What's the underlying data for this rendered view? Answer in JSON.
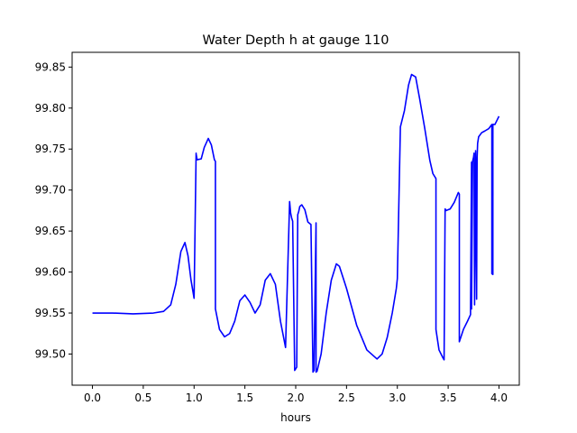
{
  "chart_data": {
    "type": "line",
    "title": "Water Depth h at gauge 110",
    "xlabel": "hours",
    "ylabel": "",
    "xlim": [
      -0.2,
      4.2
    ],
    "ylim": [
      99.462,
      99.868
    ],
    "grid": false,
    "x_ticks": [
      "0.0",
      "0.5",
      "1.0",
      "1.5",
      "2.0",
      "2.5",
      "3.0",
      "3.5",
      "4.0"
    ],
    "y_ticks": [
      "99.50",
      "99.55",
      "99.60",
      "99.65",
      "99.70",
      "99.75",
      "99.80",
      "99.85"
    ],
    "series": [
      {
        "color": "#0000ff",
        "x": [
          0.0,
          0.2,
          0.4,
          0.6,
          0.7,
          0.77,
          0.82,
          0.87,
          0.91,
          0.94,
          0.97,
          1.0,
          1.02,
          1.02,
          1.03,
          1.07,
          1.1,
          1.14,
          1.17,
          1.2,
          1.21,
          1.21,
          1.25,
          1.3,
          1.35,
          1.4,
          1.45,
          1.5,
          1.55,
          1.6,
          1.65,
          1.7,
          1.75,
          1.8,
          1.85,
          1.9,
          1.94,
          1.95,
          1.96,
          1.97,
          1.99,
          2.0,
          2.01,
          2.02,
          2.03,
          2.04,
          2.06,
          2.09,
          2.12,
          2.15,
          2.17,
          2.18,
          2.2,
          2.2,
          2.21,
          2.25,
          2.3,
          2.35,
          2.4,
          2.43,
          2.5,
          2.6,
          2.7,
          2.8,
          2.85,
          2.9,
          2.95,
          2.99,
          3.0,
          3.03,
          3.07,
          3.11,
          3.14,
          3.18,
          3.22,
          3.27,
          3.32,
          3.35,
          3.38,
          3.38,
          3.41,
          3.45,
          3.46,
          3.47,
          3.48,
          3.52,
          3.56,
          3.6,
          3.61,
          3.61,
          3.65,
          3.69,
          3.72,
          3.73,
          3.73,
          3.74,
          3.75,
          3.755,
          3.76,
          3.77,
          3.77,
          3.78,
          3.785,
          3.79,
          3.8,
          3.83,
          3.86,
          3.9,
          3.93,
          3.93,
          3.94,
          3.94,
          3.96,
          3.98,
          4.0
        ],
        "y": [
          99.55,
          99.55,
          99.549,
          99.55,
          99.552,
          99.56,
          99.585,
          99.625,
          99.636,
          99.62,
          99.59,
          99.568,
          99.745,
          99.744,
          99.737,
          99.738,
          99.752,
          99.763,
          99.755,
          99.737,
          99.735,
          99.555,
          99.53,
          99.521,
          99.525,
          99.54,
          99.565,
          99.572,
          99.563,
          99.55,
          99.56,
          99.59,
          99.598,
          99.585,
          99.54,
          99.508,
          99.686,
          99.672,
          99.666,
          99.662,
          99.48,
          99.482,
          99.484,
          99.67,
          99.674,
          99.68,
          99.682,
          99.676,
          99.661,
          99.658,
          99.478,
          99.48,
          99.66,
          99.478,
          99.479,
          99.5,
          99.55,
          99.59,
          99.61,
          99.607,
          99.58,
          99.535,
          99.505,
          99.494,
          99.5,
          99.52,
          99.55,
          99.58,
          99.592,
          99.777,
          99.797,
          99.828,
          99.841,
          99.838,
          99.811,
          99.775,
          99.736,
          99.72,
          99.714,
          99.53,
          99.505,
          99.495,
          99.493,
          99.677,
          99.675,
          99.677,
          99.685,
          99.697,
          99.695,
          99.515,
          99.53,
          99.54,
          99.548,
          99.734,
          99.555,
          99.735,
          99.74,
          99.745,
          99.56,
          99.74,
          99.748,
          99.567,
          99.74,
          99.757,
          99.765,
          99.77,
          99.772,
          99.775,
          99.78,
          99.598,
          99.597,
          99.78,
          99.78,
          99.785,
          99.79
        ]
      }
    ]
  }
}
